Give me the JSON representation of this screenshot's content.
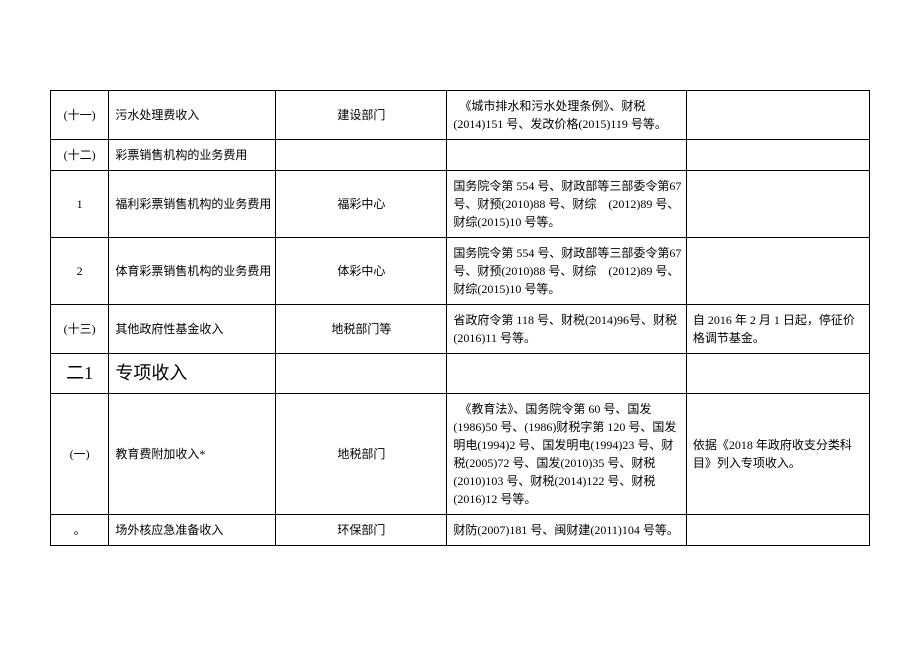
{
  "table": {
    "columns": {
      "idx_width": 58,
      "name_width": 166,
      "dept_width": 170,
      "basis_width": 238,
      "note_width": 182
    },
    "rows": [
      {
        "idx": "(十一)",
        "name": "污水处理费收入",
        "dept": "建设部门",
        "basis": "　《城市排水和污水处理条例》、财税(2014)151 号、发改价格(2015)119 号等。",
        "note": ""
      },
      {
        "idx": "(十二)",
        "name": "彩票销售机构的业务费用",
        "dept": "",
        "basis": "",
        "note": ""
      },
      {
        "idx": "1",
        "name": "福利彩票销售机构的业务费用",
        "dept": "福彩中心",
        "basis": "国务院令第 554 号、财政部等三部委令第67 号、财预(2010)88 号、财综　(2012)89 号、财综(2015)10 号等。",
        "note": ""
      },
      {
        "idx": "2",
        "name": "体育彩票销售机构的业务费用",
        "dept": "体彩中心",
        "basis": "国务院令第 554 号、财政部等三部委令第67 号、财预(2010)88 号、财综　(2012)89 号、财综(2015)10 号等。",
        "note": ""
      },
      {
        "idx": "(十三)",
        "name": "其他政府性基金收入",
        "dept": "地税部门等",
        "basis": "省政府令第 118 号、财税(2014)96号、财税(2016)11 号等。",
        "note": "自 2016 年 2 月 1 日起，停征价格调节基金。"
      },
      {
        "idx": "二1",
        "name": "专项收入",
        "dept": "",
        "basis": "",
        "note": "",
        "section": true
      },
      {
        "idx": "(一)",
        "name": "教育费附加收入*",
        "dept": "地税部门",
        "basis": "　《教育法》、国务院令第 60 号、国发(1986)50 号、(1986)财税字第 120 号、国发明电(1994)2 号、国发明电(1994)23 号、财税(2005)72 号、国发(2010)35 号、财税(2010)103 号、财税(2014)122 号、财税(2016)12 号等。",
        "note": "依据《2018 年政府收支分类科目》列入专项收入。"
      },
      {
        "idx": "。",
        "name": "场外核应急准备收入",
        "dept": "环保部门",
        "basis": "财防(2007)181 号、闽财建(2011)104 号等。",
        "note": ""
      }
    ]
  },
  "styles": {
    "font_size": 12,
    "section_font_size": 18,
    "border_color": "#000000",
    "background_color": "#ffffff",
    "text_color": "#000000"
  }
}
